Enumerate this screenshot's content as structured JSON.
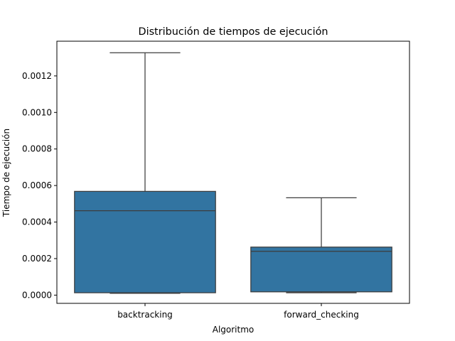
{
  "chart_data": {
    "type": "box",
    "title": "Distribución de tiempos de ejecución",
    "xlabel": "Algoritmo",
    "ylabel": "Tiempo de ejecución",
    "categories": [
      "backtracking",
      "forward_checking"
    ],
    "boxes": [
      {
        "category": "backtracking",
        "min": 1e-05,
        "q1": 1.3e-05,
        "median": 0.000462,
        "q3": 0.000568,
        "max": 0.001327
      },
      {
        "category": "forward_checking",
        "min": 1.3e-05,
        "q1": 1.8e-05,
        "median": 0.00024,
        "q3": 0.000263,
        "max": 0.000533
      }
    ],
    "yticks": [
      "0.0000",
      "0.0002",
      "0.0004",
      "0.0006",
      "0.0008",
      "0.0010",
      "0.0012"
    ],
    "ylim": [
      -4.5e-05,
      0.00139
    ],
    "grid": false,
    "colors": {
      "box_fill": "#3274a1",
      "box_edge": "#3d3d3d",
      "axes": "#000000"
    }
  }
}
